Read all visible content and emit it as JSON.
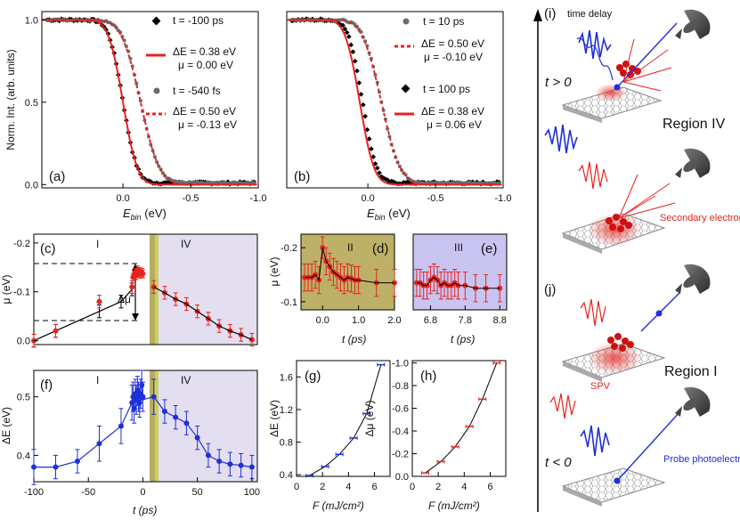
{
  "colors": {
    "black": "#000000",
    "red": "#e8231f",
    "gray": "#6b6b6b",
    "blue": "#1f2fd8",
    "olive": "#b8ad5e",
    "purple": "#ddd6ee",
    "yellowbar": "#c9d162"
  },
  "chart_data": [
    {
      "id": "a",
      "type": "scatter",
      "panel_label": "(a)",
      "xlabel": "E_bin (eV)",
      "ylabel": "Norm. Int. (arb. units)",
      "xlim": [
        0.6,
        -1.0
      ],
      "ylim": [
        -0.02,
        1.05
      ],
      "xticks": [
        "0.0",
        "-0.5",
        "-1.0"
      ],
      "yticks": [
        "0.0",
        "0.5",
        "1.0"
      ],
      "legend": [
        {
          "marker": "diamond",
          "color": "black",
          "t": "t = -100 ps"
        },
        {
          "marker": "line",
          "color": "red",
          "dE": "ΔE = 0.38 eV",
          "mu": "μ = 0.00 eV"
        },
        {
          "marker": "dot",
          "color": "gray",
          "t": "t = -540 fs"
        },
        {
          "marker": "dash",
          "color": "red",
          "dE": "ΔE = 0.50 eV",
          "mu": "μ = -0.13 eV"
        }
      ],
      "fits": [
        {
          "style": "solid",
          "color": "red",
          "mu": 0.0,
          "dE": 0.38
        },
        {
          "style": "dash",
          "color": "red",
          "mu": -0.13,
          "dE": 0.5
        }
      ],
      "data": [
        {
          "marker": "diamond",
          "color": "black",
          "mu": 0.0,
          "w": 0.115,
          "bg": 0.01,
          "noise": 0.015
        },
        {
          "marker": "dot",
          "color": "gray",
          "mu": -0.13,
          "w": 0.15,
          "bg": 0.01,
          "noise": 0.01
        }
      ]
    },
    {
      "id": "b",
      "type": "scatter",
      "panel_label": "(b)",
      "xlabel": "E_bin (eV)",
      "ylabel": "",
      "xlim": [
        0.6,
        -1.0
      ],
      "ylim": [
        -0.02,
        1.05
      ],
      "xticks": [
        "0.0",
        "-0.5",
        "-1.0"
      ],
      "yticks": [],
      "legend": [
        {
          "marker": "dot",
          "color": "gray",
          "t": "t = 10 ps"
        },
        {
          "marker": "dash",
          "color": "red",
          "dE": "ΔE = 0.50 eV",
          "mu": "μ = -0.10 eV"
        },
        {
          "marker": "diamond",
          "color": "black",
          "t": "t = 100 ps"
        },
        {
          "marker": "line",
          "color": "red",
          "dE": "ΔE = 0.38 eV",
          "mu": "μ = 0.06 eV"
        }
      ],
      "fits": [
        {
          "style": "solid",
          "color": "red",
          "mu": 0.06,
          "dE": 0.38
        },
        {
          "style": "dash",
          "color": "red",
          "mu": -0.1,
          "dE": 0.5
        }
      ],
      "data": [
        {
          "marker": "diamond",
          "color": "black",
          "mu": 0.04,
          "w": 0.115,
          "bg": 0.01,
          "noise": 0.015
        },
        {
          "marker": "dot",
          "color": "gray",
          "mu": -0.1,
          "w": 0.15,
          "bg": 0.01,
          "noise": 0.01
        }
      ]
    },
    {
      "id": "c",
      "type": "line",
      "panel_label": "(c)",
      "ylabel": "μ (eV)",
      "xlim": [
        -100,
        105
      ],
      "ylim": [
        0.008,
        -0.218
      ],
      "yticks": [
        "-0.2",
        "-0.1",
        "0.0"
      ],
      "region_labels": [
        "I",
        "IV"
      ],
      "annotation": "Δμ",
      "series": [
        {
          "name": "black",
          "x": [
            -100,
            -80,
            -40,
            -20,
            -10
          ],
          "y": [
            0.0,
            -0.02,
            -0.06,
            -0.08,
            -0.105
          ],
          "err": [
            0.013,
            0.013,
            0.013,
            0.013,
            0.013
          ]
        },
        {
          "name": "red",
          "x": [
            -100,
            -80,
            -40,
            -10,
            10,
            20,
            30,
            40,
            50,
            60,
            70,
            80,
            90,
            100
          ],
          "y": [
            0.0,
            -0.02,
            -0.08,
            -0.11,
            -0.11,
            -0.098,
            -0.085,
            -0.075,
            -0.06,
            -0.045,
            -0.03,
            -0.02,
            -0.012,
            -0.002
          ],
          "err": [
            0.013,
            0.013,
            0.013,
            0.013,
            0.013,
            0.013,
            0.013,
            0.013,
            0.013,
            0.013,
            0.013,
            0.013,
            0.013,
            0.013
          ]
        },
        {
          "name": "redcluster",
          "x": [
            -9,
            -8,
            -7,
            -6,
            -5,
            -4,
            -3,
            -2,
            -1,
            0
          ],
          "y": [
            -0.13,
            -0.135,
            -0.14,
            -0.133,
            -0.145,
            -0.138,
            -0.142,
            -0.136,
            -0.14,
            -0.137
          ],
          "err": [
            0.008,
            0.008,
            0.008,
            0.008,
            0.008,
            0.008,
            0.008,
            0.008,
            0.008,
            0.008
          ]
        }
      ]
    },
    {
      "id": "d",
      "type": "line",
      "panel_label": "(d)",
      "region": "II",
      "ylabel": "μ (eV)",
      "xlabel": "t (ps)",
      "xlim": [
        -0.6,
        2.0
      ],
      "ylim": [
        -0.085,
        -0.225
      ],
      "xticks": [
        "0.0",
        "1.0",
        "2.0"
      ],
      "yticks": [
        "-0.2",
        "-0.1"
      ],
      "series": [
        {
          "x": [
            -0.5,
            -0.4,
            -0.3,
            -0.2,
            -0.1,
            0.0,
            0.1,
            0.2,
            0.3,
            0.4,
            0.5,
            0.6,
            0.7,
            0.8,
            0.9,
            1.0,
            1.5,
            2.0
          ],
          "y": [
            -0.145,
            -0.145,
            -0.145,
            -0.15,
            -0.14,
            -0.2,
            -0.175,
            -0.165,
            -0.155,
            -0.15,
            -0.145,
            -0.14,
            -0.145,
            -0.143,
            -0.14,
            -0.14,
            -0.135,
            -0.135
          ],
          "err": [
            0.025,
            0.025,
            0.025,
            0.025,
            0.025,
            0.02,
            0.025,
            0.025,
            0.025,
            0.025,
            0.025,
            0.025,
            0.025,
            0.025,
            0.025,
            0.025,
            0.025,
            0.025
          ]
        }
      ]
    },
    {
      "id": "e",
      "type": "line",
      "panel_label": "(e)",
      "region": "III",
      "xlabel": "t (ps)",
      "xlim": [
        6.3,
        9.0
      ],
      "ylim": [
        -0.085,
        -0.225
      ],
      "xticks": [
        "6.8",
        "7.8",
        "8.8"
      ],
      "series": [
        {
          "x": [
            6.4,
            6.5,
            6.6,
            6.7,
            6.8,
            6.9,
            7.0,
            7.1,
            7.2,
            7.3,
            7.4,
            7.5,
            7.6,
            7.8,
            8.1,
            8.4,
            8.8
          ],
          "y": [
            -0.135,
            -0.135,
            -0.13,
            -0.13,
            -0.14,
            -0.145,
            -0.14,
            -0.13,
            -0.135,
            -0.13,
            -0.13,
            -0.135,
            -0.13,
            -0.13,
            -0.125,
            -0.125,
            -0.125
          ],
          "err": [
            0.025,
            0.025,
            0.025,
            0.025,
            0.025,
            0.025,
            0.025,
            0.025,
            0.025,
            0.025,
            0.025,
            0.025,
            0.025,
            0.025,
            0.025,
            0.025,
            0.025
          ]
        }
      ]
    },
    {
      "id": "f",
      "type": "line",
      "panel_label": "(f)",
      "ylabel": "ΔE (eV)",
      "xlabel": "t (ps)",
      "xlim": [
        -100,
        105
      ],
      "ylim": [
        0.355,
        0.545
      ],
      "xticks": [
        "-100",
        "-50",
        "0",
        "50",
        "100"
      ],
      "yticks": [
        "0.4",
        "0.5"
      ],
      "region_labels": [
        "I",
        "IV"
      ],
      "series": [
        {
          "name": "main",
          "x": [
            -100,
            -80,
            -60,
            -40,
            -20,
            -10,
            10,
            20,
            30,
            40,
            50,
            60,
            70,
            80,
            90,
            100
          ],
          "y": [
            0.38,
            0.38,
            0.39,
            0.42,
            0.45,
            0.49,
            0.5,
            0.475,
            0.465,
            0.455,
            0.43,
            0.4,
            0.39,
            0.385,
            0.383,
            0.38
          ],
          "err": [
            0.03,
            0.02,
            0.02,
            0.03,
            0.03,
            0.03,
            0.03,
            0.02,
            0.02,
            0.02,
            0.02,
            0.02,
            0.02,
            0.02,
            0.02,
            0.02
          ]
        },
        {
          "name": "cluster",
          "x": [
            -9,
            -8,
            -7,
            -6,
            -5,
            -4,
            -3,
            -2,
            -1,
            0
          ],
          "y": [
            0.5,
            0.48,
            0.505,
            0.495,
            0.51,
            0.5,
            0.49,
            0.505,
            0.52,
            0.5
          ],
          "err": [
            0.025,
            0.025,
            0.025,
            0.025,
            0.025,
            0.025,
            0.025,
            0.025,
            0.025,
            0.025
          ]
        }
      ]
    },
    {
      "id": "g",
      "type": "line",
      "panel_label": "(g)",
      "ylabel": "ΔE (eV)",
      "xlabel": "F (mJ/cm²)",
      "xlim": [
        0,
        7.2
      ],
      "ylim": [
        0.38,
        1.8
      ],
      "xticks": [
        "0",
        "2",
        "4",
        "6"
      ],
      "yticks": [
        "0.4",
        "0.8",
        "1.2",
        "1.6"
      ],
      "series": [
        {
          "x": [
            1.0,
            2.2,
            3.3,
            4.4,
            5.4,
            6.5
          ],
          "y": [
            0.39,
            0.5,
            0.65,
            0.85,
            1.15,
            1.75
          ]
        }
      ]
    },
    {
      "id": "h",
      "type": "line",
      "panel_label": "(h)",
      "ylabel": "Δμ (eV)",
      "xlabel": "F (mJ/cm²)",
      "xlim": [
        0,
        7.2
      ],
      "ylim": [
        0.0,
        -1.02
      ],
      "xticks": [
        "0",
        "2",
        "4",
        "6"
      ],
      "yticks": [
        "0.0",
        "-0.2",
        "-0.4",
        "-0.6",
        "-0.8",
        "-1.0"
      ],
      "series": [
        {
          "x": [
            1.0,
            2.2,
            3.3,
            4.4,
            5.4,
            6.5
          ],
          "y": [
            -0.03,
            -0.13,
            -0.26,
            -0.44,
            -0.68,
            -1.0
          ]
        }
      ]
    }
  ],
  "schematic": {
    "panel_i": "(i)",
    "panel_j": "(j)",
    "time_delay": "time delay",
    "t_pos": "t > 0",
    "t_neg": "t < 0",
    "region_iv": "Region IV",
    "region_i": "Region I",
    "secondary_electrons": "Secondary electrons",
    "spv": "SPV",
    "probe": "Probe photoelectron"
  },
  "labels": {
    "ebin_a": "E",
    "ebin_sub": "bin",
    "unit": " (eV)"
  }
}
